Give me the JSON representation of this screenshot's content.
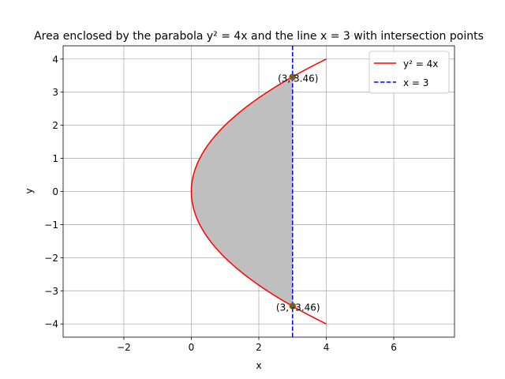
{
  "chart_data": {
    "type": "line",
    "title": "Area enclosed by the parabola y² = 4x and the line x = 3 with intersection points",
    "xlabel": "x",
    "ylabel": "y",
    "xlim": [
      -3.8,
      7.8
    ],
    "ylim": [
      -4.4,
      4.4
    ],
    "xticks": [
      -2,
      0,
      2,
      4,
      6
    ],
    "yticks": [
      -4,
      -3,
      -2,
      -1,
      0,
      1,
      2,
      3,
      4
    ],
    "xtick_labels": [
      "−2",
      "0",
      "2",
      "4",
      "6"
    ],
    "ytick_labels": [
      "−4",
      "−3",
      "−2",
      "−1",
      "0",
      "1",
      "2",
      "3",
      "4"
    ],
    "grid": true,
    "legend_position": "top-right",
    "series": [
      {
        "name": "y² = 4x",
        "kind": "parabola",
        "equation": "y^2 = 4x",
        "x_range": [
          0,
          4
        ],
        "color": "#ff0000",
        "style": "solid"
      },
      {
        "name": "x = 3",
        "kind": "vertical-line",
        "x": 3,
        "color": "#0000ff",
        "style": "dashed"
      }
    ],
    "shaded_region": {
      "description": "area between y² = 4x and x = 3",
      "x_range": [
        0,
        3
      ],
      "color": "#bfbfbf"
    },
    "points": [
      {
        "x": 3,
        "y": 3.46,
        "label": "(3, 3.46)"
      },
      {
        "x": 3,
        "y": -3.46,
        "label": "(3, -3.46)"
      }
    ],
    "colors": {
      "parabola": "#ff0000",
      "vertical_line": "#0000ff",
      "shade": "#bfbfbf",
      "point": "#556b2f",
      "grid": "#b0b0b0"
    }
  }
}
